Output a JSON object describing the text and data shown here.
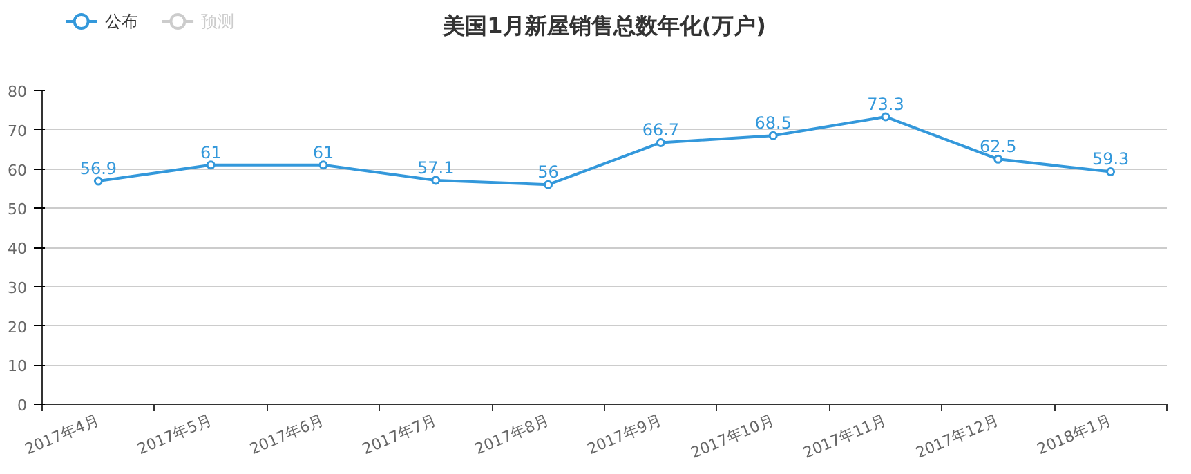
{
  "chart_data": {
    "type": "line",
    "title": "美国1月新屋销售总数年化(万户)",
    "categories": [
      "2017年4月",
      "2017年5月",
      "2017年6月",
      "2017年7月",
      "2017年8月",
      "2017年9月",
      "2017年10月",
      "2017年11月",
      "2017年12月",
      "2018年1月"
    ],
    "series": [
      {
        "name": "公布",
        "color": "#3398db",
        "values": [
          56.9,
          61,
          61,
          57.1,
          56,
          66.7,
          68.5,
          73.3,
          62.5,
          59.3
        ]
      },
      {
        "name": "预测",
        "color": "#cccccc",
        "values": [
          null,
          null,
          null,
          null,
          null,
          null,
          null,
          null,
          null,
          null
        ]
      }
    ],
    "ylim": [
      0,
      80
    ],
    "yticks": [
      0,
      10,
      20,
      30,
      40,
      50,
      60,
      70,
      80
    ],
    "grid": "y",
    "legend": "top left",
    "marker": "circle",
    "data_labels": true
  }
}
